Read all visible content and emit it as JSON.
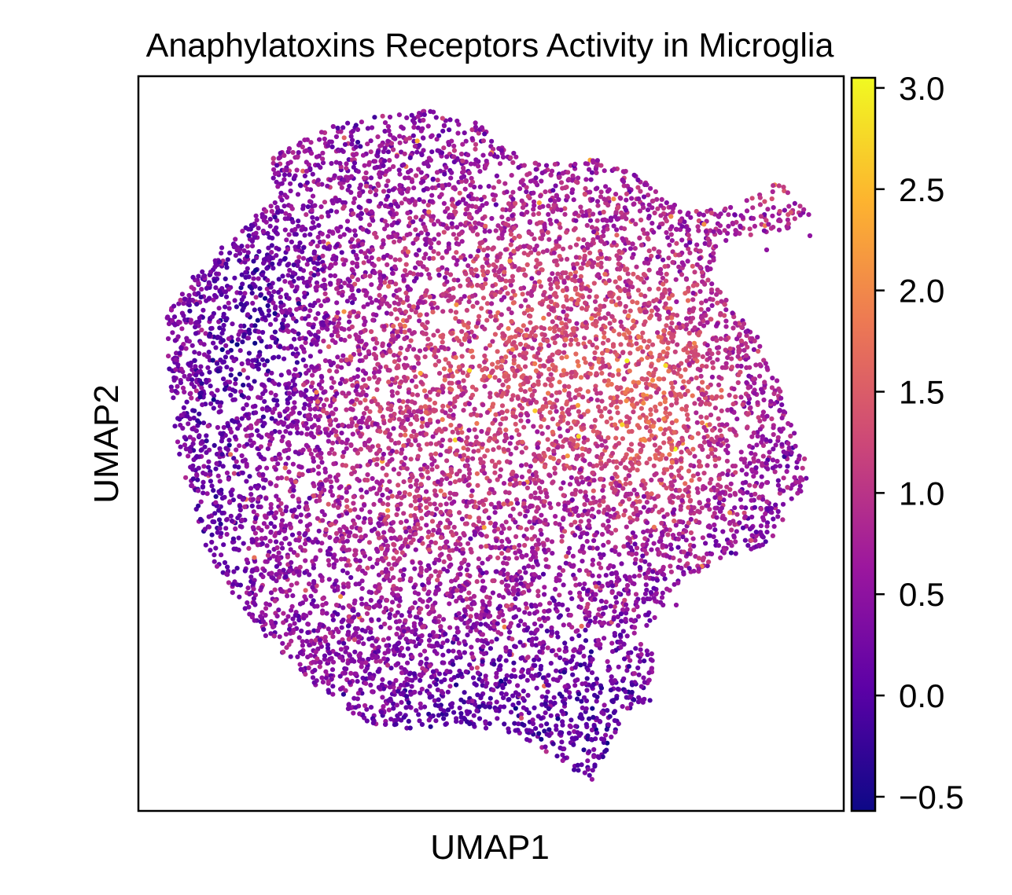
{
  "chart_data": {
    "type": "scatter",
    "title": "Anaphylatoxins Receptors Activity in Microglia",
    "xlabel": "UMAP1",
    "ylabel": "UMAP2",
    "x_ticks_shown": false,
    "y_ticks_shown": false,
    "grid": false,
    "legend": "colorbar-right",
    "colormap": "plasma",
    "color_range": [
      -0.57,
      3.05
    ],
    "colorbar_ticks": [
      "−0.5",
      "0.0",
      "0.5",
      "1.0",
      "1.5",
      "2.0",
      "2.5",
      "3.0"
    ],
    "colorbar_tick_values": [
      -0.5,
      0.0,
      0.5,
      1.0,
      1.5,
      2.0,
      2.5,
      3.0
    ],
    "colormap_stops": [
      "#0d0887",
      "#5c01a6",
      "#9c179e",
      "#cc4778",
      "#ed7953",
      "#fdb42f",
      "#f0f921"
    ],
    "frame_color": "#000000"
  }
}
